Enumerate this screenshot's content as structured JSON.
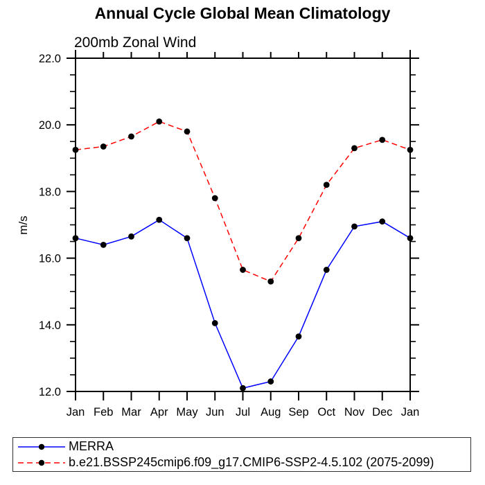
{
  "header": {
    "title": "Annual Cycle Global Mean Climatology",
    "subtitle": "200mb Zonal Wind"
  },
  "chart_data": {
    "type": "line",
    "title": "Annual Cycle Global Mean Climatology",
    "subtitle": "200mb Zonal Wind",
    "xlabel": "",
    "ylabel": "m/s",
    "categories": [
      "Jan",
      "Feb",
      "Mar",
      "Apr",
      "May",
      "Jun",
      "Jul",
      "Aug",
      "Sep",
      "Oct",
      "Nov",
      "Dec",
      "Jan"
    ],
    "ylim": [
      12.0,
      22.0
    ],
    "ytick_step": 2.0,
    "yminor_step": 0.5,
    "ytick_labels": [
      "12.0",
      "14.0",
      "16.0",
      "18.0",
      "20.0",
      "22.0"
    ],
    "grid": false,
    "legend_position": "bottom",
    "axis_color": "#000000",
    "marker": {
      "shape": "circle",
      "color": "#000000",
      "radius": 4.4
    },
    "series": [
      {
        "name": "MERRA",
        "color": "#0000ff",
        "style": "solid",
        "values": [
          16.6,
          16.4,
          16.65,
          17.15,
          16.6,
          14.05,
          12.1,
          12.3,
          13.65,
          15.65,
          16.95,
          17.1,
          16.6
        ]
      },
      {
        "name": "b.e21.BSSP245cmip6.f09_g17.CMIP6-SSP2-4.5.102 (2075-2099)",
        "color": "#ff0000",
        "style": "dashed",
        "values": [
          19.25,
          19.35,
          19.65,
          20.1,
          19.8,
          17.8,
          15.65,
          15.3,
          16.6,
          18.2,
          19.3,
          19.55,
          19.25
        ]
      }
    ]
  }
}
